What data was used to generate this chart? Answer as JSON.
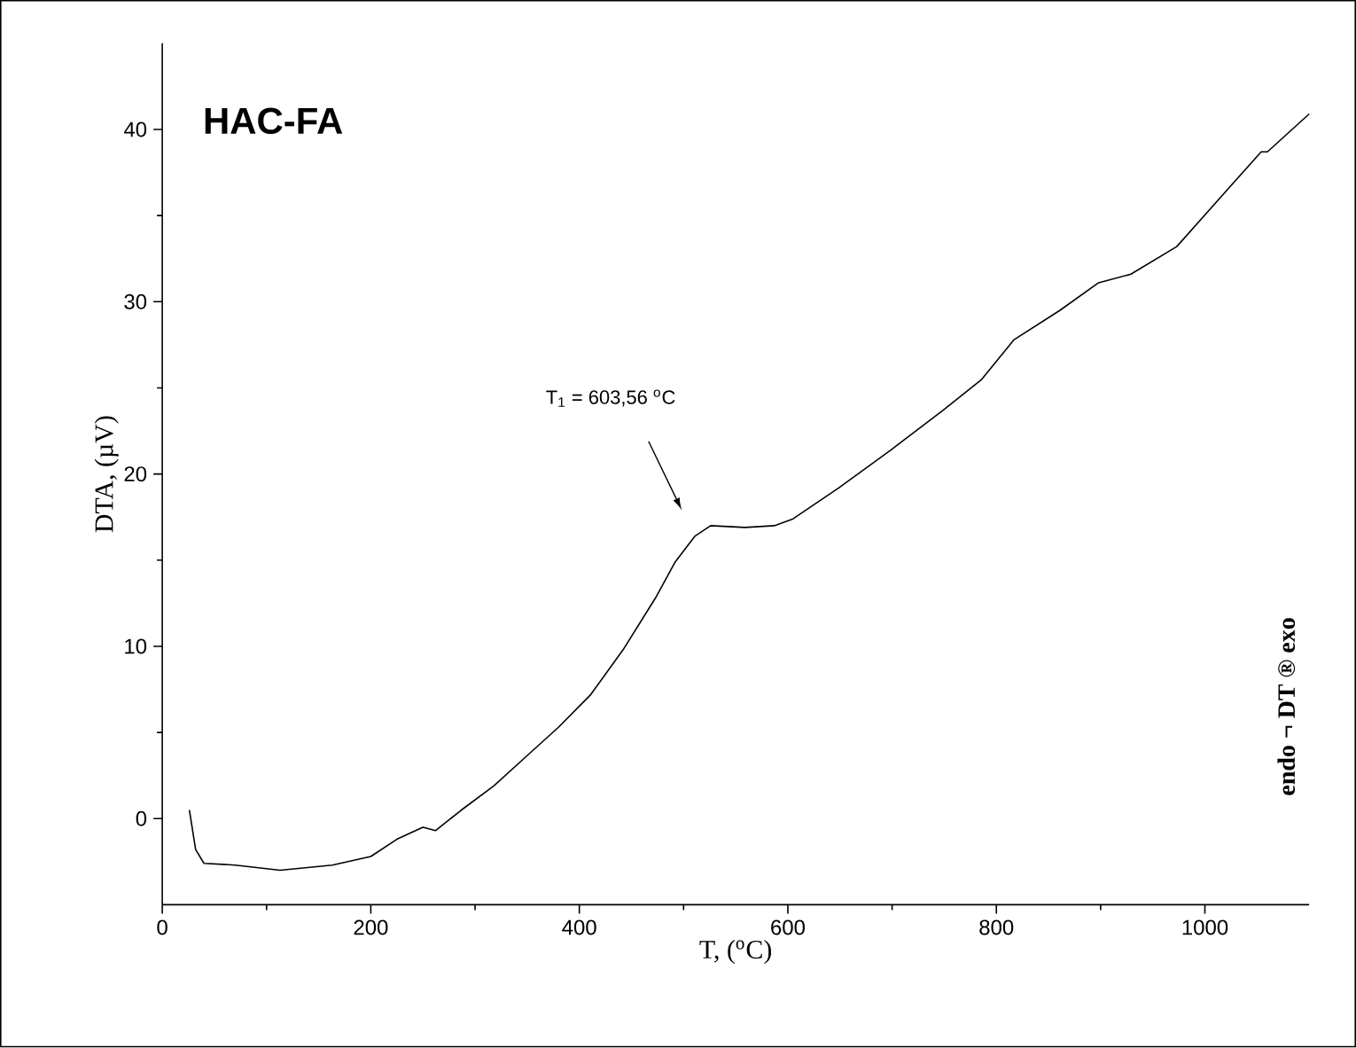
{
  "chart_data": {
    "type": "line",
    "title": "HAC-FA",
    "xlabel": "T, ($^{o}$C)",
    "ylabel": "DTA, (µV)",
    "xlim": [
      0,
      1100
    ],
    "ylim": [
      -5,
      45
    ],
    "xticks": [
      0,
      200,
      400,
      600,
      800,
      1000
    ],
    "yticks": [
      0,
      10,
      20,
      30,
      40
    ],
    "annotations": [
      "T$_{1}$ = 603,56 $^{o}$C",
      "endo ¬ DT ® exo"
    ],
    "series": [
      {
        "color": "#000000",
        "x": [
          26,
          32,
          40,
          70,
          113,
          163,
          200,
          225,
          250,
          262,
          287,
          318,
          349,
          380,
          411,
          442,
          473,
          492,
          511,
          526,
          559,
          587,
          605,
          649,
          699,
          749,
          786,
          817,
          861,
          898,
          929,
          973,
          1023,
          1054,
          1060,
          1100
        ],
        "values": [
          0.5,
          -1.8,
          -2.6,
          -2.7,
          -3.0,
          -2.7,
          -2.2,
          -1.2,
          -0.5,
          -0.7,
          0.5,
          1.9,
          3.6,
          5.3,
          7.2,
          9.8,
          12.8,
          14.9,
          16.4,
          17.0,
          16.9,
          17.0,
          17.4,
          19.2,
          21.4,
          23.7,
          25.5,
          27.8,
          29.5,
          31.1,
          31.6,
          33.2,
          36.6,
          38.7,
          38.7,
          40.9
        ]
      }
    ]
  }
}
